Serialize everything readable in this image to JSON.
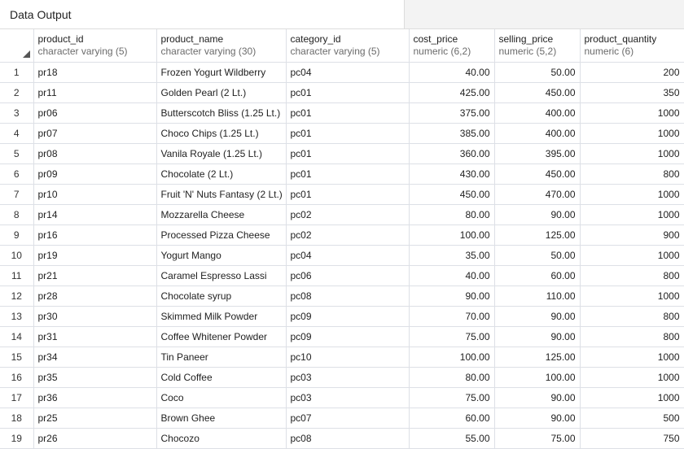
{
  "panel": {
    "title": "Data Output"
  },
  "columns": [
    {
      "name": "product_id",
      "type": "character varying (5)"
    },
    {
      "name": "product_name",
      "type": "character varying (30)"
    },
    {
      "name": "category_id",
      "type": "character varying (5)"
    },
    {
      "name": "cost_price",
      "type": "numeric (6,2)"
    },
    {
      "name": "selling_price",
      "type": "numeric (5,2)"
    },
    {
      "name": "product_quantity",
      "type": "numeric (6)"
    }
  ],
  "rows": [
    {
      "n": "1",
      "product_id": "pr18",
      "product_name": "Frozen Yogurt Wildberry",
      "category_id": "pc04",
      "cost_price": "40.00",
      "selling_price": "50.00",
      "product_quantity": "200"
    },
    {
      "n": "2",
      "product_id": "pr11",
      "product_name": "Golden Pearl (2 Lt.)",
      "category_id": "pc01",
      "cost_price": "425.00",
      "selling_price": "450.00",
      "product_quantity": "350"
    },
    {
      "n": "3",
      "product_id": "pr06",
      "product_name": "Butterscotch Bliss (1.25 Lt.)",
      "category_id": "pc01",
      "cost_price": "375.00",
      "selling_price": "400.00",
      "product_quantity": "1000"
    },
    {
      "n": "4",
      "product_id": "pr07",
      "product_name": "Choco Chips (1.25 Lt.)",
      "category_id": "pc01",
      "cost_price": "385.00",
      "selling_price": "400.00",
      "product_quantity": "1000"
    },
    {
      "n": "5",
      "product_id": "pr08",
      "product_name": "Vanila Royale (1.25 Lt.)",
      "category_id": "pc01",
      "cost_price": "360.00",
      "selling_price": "395.00",
      "product_quantity": "1000"
    },
    {
      "n": "6",
      "product_id": "pr09",
      "product_name": "Chocolate (2 Lt.)",
      "category_id": "pc01",
      "cost_price": "430.00",
      "selling_price": "450.00",
      "product_quantity": "800"
    },
    {
      "n": "7",
      "product_id": "pr10",
      "product_name": "Fruit 'N' Nuts Fantasy (2 Lt.)",
      "category_id": "pc01",
      "cost_price": "450.00",
      "selling_price": "470.00",
      "product_quantity": "1000"
    },
    {
      "n": "8",
      "product_id": "pr14",
      "product_name": "Mozzarella Cheese",
      "category_id": "pc02",
      "cost_price": "80.00",
      "selling_price": "90.00",
      "product_quantity": "1000"
    },
    {
      "n": "9",
      "product_id": "pr16",
      "product_name": "Processed Pizza Cheese",
      "category_id": "pc02",
      "cost_price": "100.00",
      "selling_price": "125.00",
      "product_quantity": "900"
    },
    {
      "n": "10",
      "product_id": "pr19",
      "product_name": "Yogurt Mango",
      "category_id": "pc04",
      "cost_price": "35.00",
      "selling_price": "50.00",
      "product_quantity": "1000"
    },
    {
      "n": "11",
      "product_id": "pr21",
      "product_name": "Caramel Espresso Lassi",
      "category_id": "pc06",
      "cost_price": "40.00",
      "selling_price": "60.00",
      "product_quantity": "800"
    },
    {
      "n": "12",
      "product_id": "pr28",
      "product_name": "Chocolate syrup",
      "category_id": "pc08",
      "cost_price": "90.00",
      "selling_price": "110.00",
      "product_quantity": "1000"
    },
    {
      "n": "13",
      "product_id": "pr30",
      "product_name": "Skimmed Milk Powder",
      "category_id": "pc09",
      "cost_price": "70.00",
      "selling_price": "90.00",
      "product_quantity": "800"
    },
    {
      "n": "14",
      "product_id": "pr31",
      "product_name": "Coffee Whitener Powder",
      "category_id": "pc09",
      "cost_price": "75.00",
      "selling_price": "90.00",
      "product_quantity": "800"
    },
    {
      "n": "15",
      "product_id": "pr34",
      "product_name": "Tin Paneer",
      "category_id": "pc10",
      "cost_price": "100.00",
      "selling_price": "125.00",
      "product_quantity": "1000"
    },
    {
      "n": "16",
      "product_id": "pr35",
      "product_name": "Cold Coffee",
      "category_id": "pc03",
      "cost_price": "80.00",
      "selling_price": "100.00",
      "product_quantity": "1000"
    },
    {
      "n": "17",
      "product_id": "pr36",
      "product_name": "Coco",
      "category_id": "pc03",
      "cost_price": "75.00",
      "selling_price": "90.00",
      "product_quantity": "1000"
    },
    {
      "n": "18",
      "product_id": "pr25",
      "product_name": "Brown Ghee",
      "category_id": "pc07",
      "cost_price": "60.00",
      "selling_price": "90.00",
      "product_quantity": "500"
    },
    {
      "n": "19",
      "product_id": "pr26",
      "product_name": "Chocozo",
      "category_id": "pc08",
      "cost_price": "55.00",
      "selling_price": "75.00",
      "product_quantity": "750"
    }
  ]
}
